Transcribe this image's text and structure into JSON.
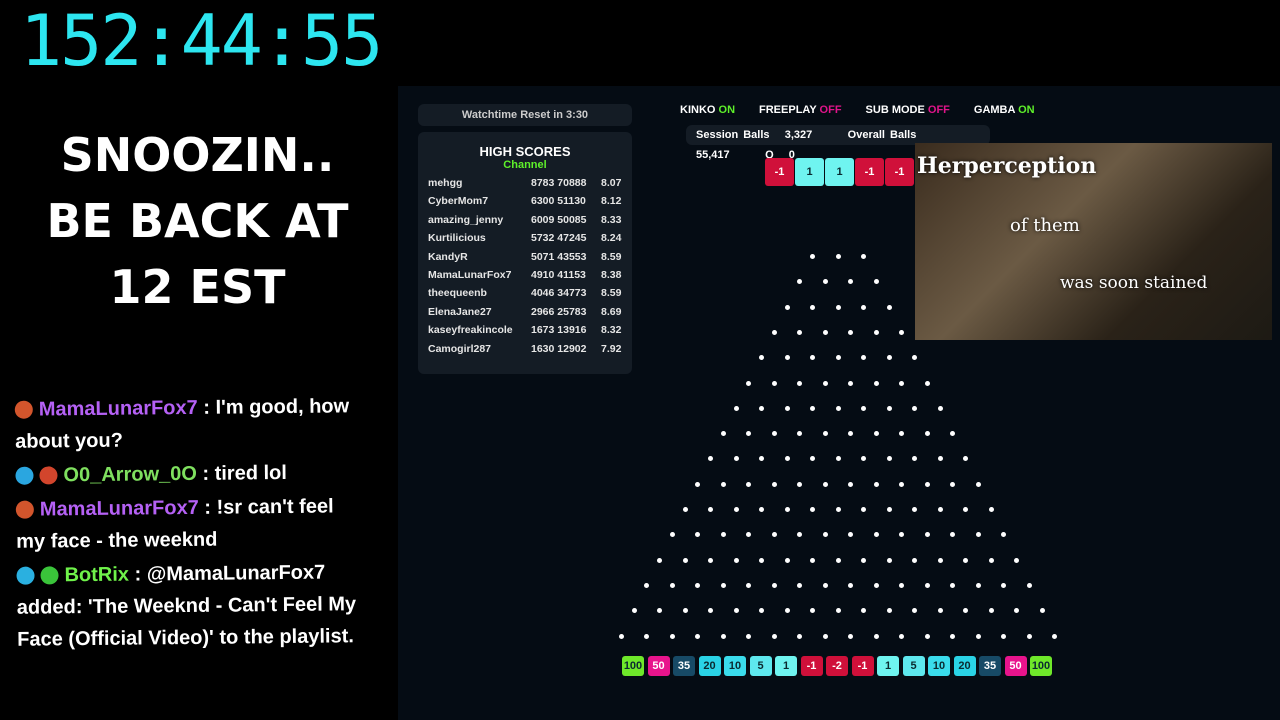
{
  "timer": "152:44:55",
  "message": [
    "SNOOZIN..",
    "BE BACK AT",
    "12 EST"
  ],
  "chat": [
    {
      "user": "MamaLunarFox7",
      "cls": "u1",
      "badges": [
        "#d2552c"
      ],
      "text": "I'm good, how about you?"
    },
    {
      "user": "O0_Arrow_0O",
      "cls": "u2",
      "badges": [
        "#2aa6e0",
        "#d2452c"
      ],
      "text": "tired lol"
    },
    {
      "user": "MamaLunarFox7",
      "cls": "u1",
      "badges": [
        "#d2552c"
      ],
      "text": "!sr can't feel my face - the weeknd"
    },
    {
      "user": "BotRix",
      "cls": "u3",
      "badges": [
        "#2ab0e0",
        "#3ac43a"
      ],
      "text": "@MamaLunarFox7 added: 'The Weeknd - Can't Feel My Face (Official Video)' to the playlist."
    }
  ],
  "watchtime": "Watchtime Reset in  3:30",
  "high_scores": {
    "title": "HIGH SCORES",
    "subtitle": "Channel",
    "rows": [
      [
        "mehgg",
        "8783 70888",
        "8.07"
      ],
      [
        "CyberMom7",
        "6300 51130",
        "8.12"
      ],
      [
        "amazing_jenny",
        "6009 50085",
        "8.33"
      ],
      [
        "Kurtilicious",
        "5732 47245",
        "8.24"
      ],
      [
        "KandyR",
        "5071 43553",
        "8.59"
      ],
      [
        "MamaLunarFox7",
        "4910 41153",
        "8.38"
      ],
      [
        "theequeenb",
        "4046 34773",
        "8.59"
      ],
      [
        "ElenaJane27",
        "2966 25783",
        "8.69"
      ],
      [
        "kaseyfreakincole",
        "1673 13916",
        "8.32"
      ],
      [
        "Camogirl287",
        "1630 12902",
        "7.92"
      ]
    ]
  },
  "toggles": [
    {
      "label": "KINKO",
      "state": "ON"
    },
    {
      "label": "FREEPLAY",
      "state": "OFF"
    },
    {
      "label": "SUB MODE",
      "state": "OFF"
    },
    {
      "label": "GAMBA",
      "state": "ON"
    }
  ],
  "stats": {
    "session_label": "Session Balls",
    "session": "3,327",
    "overall_label": "Overall Balls",
    "overall": "55,417",
    "q_label": "Q",
    "q": "0"
  },
  "recent": [
    "-1",
    "1",
    "1",
    "-1",
    "-1"
  ],
  "video_lyrics": [
    "Herperception",
    "of them",
    "was soon stained"
  ],
  "slots": [
    "100",
    "50",
    "35",
    "20",
    "10",
    "5",
    "1",
    "-1",
    "-2",
    "-1",
    "1",
    "5",
    "10",
    "20",
    "35",
    "50",
    "100"
  ],
  "slot_colors": {
    "100": "#6fe82a",
    "50": "#e8148c",
    "35": "#174a66",
    "20": "#2ad3e6",
    "10": "#3adcec",
    "5": "#5ee8ee",
    "1": "#6ff4f0",
    "-1": "#d0103a",
    "-2": "#d0103a"
  },
  "peg_rows": 16
}
